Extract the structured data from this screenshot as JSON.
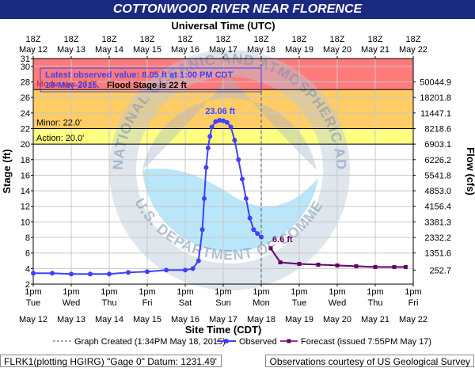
{
  "chart_data": {
    "type": "line",
    "title": "COTTONWOOD RIVER NEAR FLORENCE",
    "top_axis_label": "Universal Time (UTC)",
    "xlabel": "Site Time (CDT)",
    "ylabel": "Stage (ft)",
    "y2label": "Flow (cfs)",
    "ylim": [
      2,
      31
    ],
    "xlim": [
      "May 12 1pm",
      "May 22 1pm"
    ],
    "y_ticks": [
      2,
      4,
      6,
      8,
      10,
      12,
      14,
      16,
      18,
      20,
      22,
      24,
      26,
      28,
      30,
      31
    ],
    "flow_ticks": [
      {
        "stage": 3.8,
        "label": "252.7"
      },
      {
        "stage": 6,
        "label": "1351.6"
      },
      {
        "stage": 8,
        "label": "2332.2"
      },
      {
        "stage": 10,
        "label": "3381.3"
      },
      {
        "stage": 12,
        "label": "4156.4"
      },
      {
        "stage": 14,
        "label": "4853.0"
      },
      {
        "stage": 16,
        "label": "5541.8"
      },
      {
        "stage": 18,
        "label": "6226.2"
      },
      {
        "stage": 20,
        "label": "6903.1"
      },
      {
        "stage": 22,
        "label": "8218.6"
      },
      {
        "stage": 24,
        "label": "11447.1"
      },
      {
        "stage": 26,
        "label": "18201.8"
      },
      {
        "stage": 28,
        "label": "50044.9"
      }
    ],
    "bottom_ticks": [
      {
        "time": "1pm",
        "day": "Tue",
        "date": "May 12"
      },
      {
        "time": "1pm",
        "day": "Wed",
        "date": "May 13"
      },
      {
        "time": "1pm",
        "day": "Thu",
        "date": "May 14"
      },
      {
        "time": "1pm",
        "day": "Fri",
        "date": "May 15"
      },
      {
        "time": "1pm",
        "day": "Sat",
        "date": "May 16"
      },
      {
        "time": "1pm",
        "day": "Sun",
        "date": "May 17"
      },
      {
        "time": "1pm",
        "day": "Mon",
        "date": "May 18"
      },
      {
        "time": "1pm",
        "day": "Tue",
        "date": "May 19"
      },
      {
        "time": "1pm",
        "day": "Wed",
        "date": "May 20"
      },
      {
        "time": "1pm",
        "day": "Thu",
        "date": "May 21"
      },
      {
        "time": "1pm",
        "day": "Fri",
        "date": "May 22"
      }
    ],
    "top_ticks": [
      {
        "hour": "18Z",
        "date": "May 12"
      },
      {
        "hour": "18Z",
        "date": "May 13"
      },
      {
        "hour": "18Z",
        "date": "May 14"
      },
      {
        "hour": "18Z",
        "date": "May 15"
      },
      {
        "hour": "18Z",
        "date": "May 16"
      },
      {
        "hour": "18Z",
        "date": "May 17"
      },
      {
        "hour": "18Z",
        "date": "May 18"
      },
      {
        "hour": "18Z",
        "date": "May 19"
      },
      {
        "hour": "18Z",
        "date": "May 20"
      },
      {
        "hour": "18Z",
        "date": "May 21"
      },
      {
        "hour": "18Z",
        "date": "May 22"
      }
    ],
    "flood_categories": [
      {
        "name": "Action",
        "label": "Action: 20.0'",
        "from": 20,
        "to": 22,
        "color": "#ffff80"
      },
      {
        "name": "Minor",
        "label": "Minor: 22.0'",
        "from": 22,
        "to": 27,
        "color": "#ffcc66"
      },
      {
        "name": "Moderate",
        "label": "Moderate: 27.0'",
        "from": 27,
        "to": 31,
        "color": "#ff7a7a"
      }
    ],
    "series": [
      {
        "name": "Observed",
        "color": "#4040ff",
        "x": [
          0,
          0.5,
          1,
          1.5,
          2,
          2.5,
          3,
          3.5,
          4,
          4.2,
          4.35,
          4.45,
          4.5,
          4.55,
          4.6,
          4.65,
          4.7,
          4.8,
          4.9,
          5.0,
          5.1,
          5.2,
          5.3,
          5.4,
          5.5,
          5.6,
          5.7,
          5.8,
          5.9,
          6.0
        ],
        "values": [
          3.4,
          3.4,
          3.3,
          3.3,
          3.3,
          3.5,
          3.6,
          3.8,
          3.8,
          4.0,
          5.0,
          9.0,
          13.0,
          17.0,
          19.5,
          21.0,
          22.2,
          22.9,
          23.06,
          23.0,
          22.8,
          22.2,
          20.5,
          18.0,
          15.5,
          13.0,
          10.5,
          9.0,
          8.5,
          8.05
        ]
      },
      {
        "name": "Forecast (issued 7:55PM May 17)",
        "color": "#660066",
        "x": [
          6.25,
          6.5,
          7.0,
          7.5,
          8.0,
          8.5,
          9.0,
          9.5,
          9.8
        ],
        "values": [
          6.6,
          4.8,
          4.6,
          4.5,
          4.4,
          4.3,
          4.2,
          4.2,
          4.2
        ]
      }
    ],
    "annotations": [
      {
        "text": "23.06 ft",
        "x": 4.92,
        "y": 23.06,
        "color": "#4040ff"
      },
      {
        "text": "6.6 ft",
        "x": 6.25,
        "y": 6.6,
        "color": "#660066"
      }
    ],
    "info_box": {
      "line1": "Latest observed value: 8.05 ft at 1:00 PM CDT",
      "line2_date": "18-May-2015.",
      "line2_rest": "Flood Stage is 22 ft"
    },
    "graph_created_x": 6.0,
    "legend": {
      "created": "Graph Created (1:34PM May 18, 2015)",
      "observed": "Observed",
      "forecast": "Forecast (issued 7:55PM May 17)"
    },
    "footer_left": "FLRK1(plotting HGIRG) \"Gage 0\" Datum: 1231.49'",
    "footer_right": "Observations courtesy of US Geological Survey",
    "watermark": [
      "NATIONAL OCEANIC AND ATMOSPHERIC ADMINISTRATION",
      "U.S. DEPARTMENT OF COMMERCE"
    ]
  }
}
